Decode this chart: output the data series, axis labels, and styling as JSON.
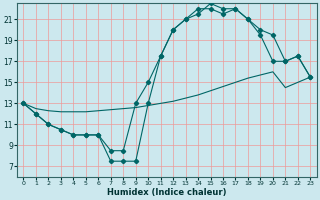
{
  "xlabel": "Humidex (Indice chaleur)",
  "bg_color": "#cce8ee",
  "grid_color": "#ee9999",
  "line_color": "#006666",
  "xlim": [
    -0.5,
    23.5
  ],
  "ylim": [
    6,
    22.5
  ],
  "xticks": [
    0,
    1,
    2,
    3,
    4,
    5,
    6,
    7,
    8,
    9,
    10,
    11,
    12,
    13,
    14,
    15,
    16,
    17,
    18,
    19,
    20,
    21,
    22,
    23
  ],
  "yticks": [
    7,
    9,
    11,
    13,
    15,
    17,
    19,
    21
  ],
  "line1_x": [
    0,
    1,
    2,
    3,
    4,
    5,
    6,
    7,
    8,
    9,
    10,
    11,
    12,
    13,
    14,
    15,
    16,
    17,
    18,
    19,
    20,
    21,
    22,
    23
  ],
  "line1_y": [
    13,
    12.5,
    12.3,
    12.2,
    12.2,
    12.2,
    12.3,
    12.4,
    12.5,
    12.6,
    12.8,
    13.0,
    13.2,
    13.5,
    13.8,
    14.2,
    14.6,
    15.0,
    15.4,
    15.7,
    16.0,
    14.5,
    15.0,
    15.5
  ],
  "line2_x": [
    0,
    1,
    2,
    3,
    4,
    5,
    6,
    7,
    8,
    9,
    10,
    11,
    12,
    13,
    14,
    15,
    16,
    17,
    18,
    19,
    20,
    21,
    22,
    23
  ],
  "line2_y": [
    13,
    12,
    11,
    10.5,
    10,
    10,
    10,
    8.5,
    8.5,
    13,
    15,
    17.5,
    20,
    21,
    22,
    22,
    21.5,
    22,
    21,
    19.5,
    17,
    17,
    17.5,
    15.5
  ],
  "line3_x": [
    0,
    1,
    2,
    3,
    4,
    5,
    6,
    7,
    8,
    9,
    10,
    11,
    12,
    13,
    14,
    15,
    16,
    17,
    18,
    19,
    20,
    21,
    22,
    23
  ],
  "line3_y": [
    13,
    12,
    11,
    10.5,
    10,
    10,
    10,
    7.5,
    7.5,
    7.5,
    13,
    17.5,
    20,
    21,
    21.5,
    22.5,
    22,
    22,
    21,
    20,
    19.5,
    17,
    17.5,
    15.5
  ]
}
